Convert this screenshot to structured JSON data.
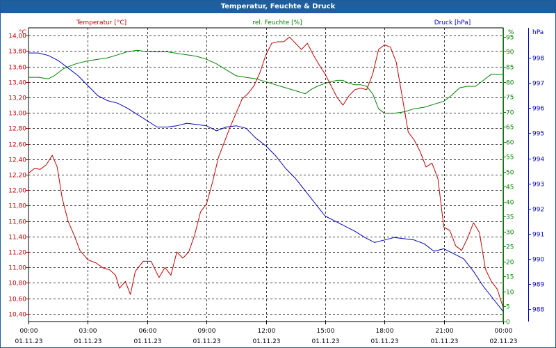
{
  "window": {
    "title": "Temperatur, Feuchte & Druck"
  },
  "colors": {
    "temperature": "#c00000",
    "humidity": "#008000",
    "pressure": "#0000c0"
  },
  "chart_data": {
    "type": "line",
    "title": "Temperatur, Feuchte & Druck",
    "x_unit": "hours since 01.11.23 00:00",
    "xlim": [
      0,
      24
    ],
    "grid": true,
    "x_ticks": [
      {
        "time": "00:00",
        "date": "01.11.23",
        "x": 0
      },
      {
        "time": "03:00",
        "date": "01.11.23",
        "x": 3
      },
      {
        "time": "06:00",
        "date": "01.11.23",
        "x": 6
      },
      {
        "time": "09:00",
        "date": "01.11.23",
        "x": 9
      },
      {
        "time": "12:00",
        "date": "01.11.23",
        "x": 12
      },
      {
        "time": "15:00",
        "date": "01.11.23",
        "x": 15
      },
      {
        "time": "18:00",
        "date": "01.11.23",
        "x": 18
      },
      {
        "time": "21:00",
        "date": "01.11.23",
        "x": 21
      },
      {
        "time": "00:00",
        "date": "02.11.23",
        "x": 24
      }
    ],
    "axes": {
      "temperature": {
        "title": "Temperatur [°C]",
        "unit": "°C",
        "ylim": [
          10.3,
          14.1
        ],
        "ticks": [
          "14,00",
          "13,80",
          "13,60",
          "13,40",
          "13,20",
          "13,00",
          "12,80",
          "12,60",
          "12,40",
          "12,20",
          "12,00",
          "11,80",
          "11,60",
          "11,40",
          "11,20",
          "11,00",
          "10,80",
          "10,60",
          "10,40"
        ],
        "tick_values": [
          14.0,
          13.8,
          13.6,
          13.4,
          13.2,
          13.0,
          12.8,
          12.6,
          12.4,
          12.2,
          12.0,
          11.8,
          11.6,
          11.4,
          11.2,
          11.0,
          10.8,
          10.6,
          10.4
        ]
      },
      "humidity": {
        "title": "rel. Feuchte [%]",
        "unit": "%",
        "ylim": [
          0,
          98
        ],
        "ticks": [
          "95",
          "90",
          "85",
          "80",
          "75",
          "70",
          "65",
          "60",
          "55",
          "50",
          "45",
          "40",
          "35",
          "30",
          "25",
          "20",
          "15",
          "10",
          "5",
          "0"
        ],
        "tick_values": [
          95,
          90,
          85,
          80,
          75,
          70,
          65,
          60,
          55,
          50,
          45,
          40,
          35,
          30,
          25,
          20,
          15,
          10,
          5,
          0
        ]
      },
      "pressure": {
        "title": "Druck [hPa]",
        "unit": "hPa",
        "ylim": [
          987.5,
          999.2
        ],
        "ticks": [
          "998",
          "997",
          "996",
          "995",
          "994",
          "993",
          "992",
          "991",
          "990",
          "989",
          "988"
        ],
        "tick_values": [
          998,
          997,
          996,
          995,
          994,
          993,
          992,
          991,
          990,
          989,
          988
        ]
      }
    },
    "series": [
      {
        "name": "Temperatur [°C]",
        "axis": "temperature",
        "color": "#c00000",
        "points": [
          [
            0,
            12.22
          ],
          [
            0.3,
            12.28
          ],
          [
            0.6,
            12.27
          ],
          [
            0.9,
            12.33
          ],
          [
            1.2,
            12.45
          ],
          [
            1.45,
            12.3
          ],
          [
            1.7,
            11.9
          ],
          [
            2.0,
            11.6
          ],
          [
            2.3,
            11.42
          ],
          [
            2.6,
            11.22
          ],
          [
            3.0,
            11.1
          ],
          [
            3.4,
            11.06
          ],
          [
            3.8,
            10.99
          ],
          [
            4.1,
            10.97
          ],
          [
            4.4,
            10.9
          ],
          [
            4.6,
            10.73
          ],
          [
            4.9,
            10.82
          ],
          [
            5.15,
            10.65
          ],
          [
            5.4,
            10.95
          ],
          [
            5.8,
            11.08
          ],
          [
            6.2,
            11.08
          ],
          [
            6.6,
            10.87
          ],
          [
            6.9,
            11.0
          ],
          [
            7.2,
            10.9
          ],
          [
            7.5,
            11.2
          ],
          [
            7.8,
            11.12
          ],
          [
            8.1,
            11.2
          ],
          [
            8.4,
            11.42
          ],
          [
            8.7,
            11.72
          ],
          [
            9.0,
            11.82
          ],
          [
            9.3,
            12.1
          ],
          [
            9.6,
            12.42
          ],
          [
            9.9,
            12.62
          ],
          [
            10.2,
            12.82
          ],
          [
            10.5,
            13.0
          ],
          [
            10.8,
            13.18
          ],
          [
            11.1,
            13.25
          ],
          [
            11.4,
            13.35
          ],
          [
            11.7,
            13.52
          ],
          [
            12.0,
            13.75
          ],
          [
            12.3,
            13.9
          ],
          [
            12.6,
            13.92
          ],
          [
            12.9,
            13.92
          ],
          [
            13.2,
            13.98
          ],
          [
            13.5,
            13.9
          ],
          [
            13.8,
            13.82
          ],
          [
            14.1,
            13.9
          ],
          [
            14.4,
            13.75
          ],
          [
            14.7,
            13.62
          ],
          [
            15.0,
            13.5
          ],
          [
            15.3,
            13.35
          ],
          [
            15.6,
            13.2
          ],
          [
            15.9,
            13.1
          ],
          [
            16.2,
            13.22
          ],
          [
            16.5,
            13.3
          ],
          [
            16.8,
            13.32
          ],
          [
            17.1,
            13.3
          ],
          [
            17.4,
            13.5
          ],
          [
            17.7,
            13.82
          ],
          [
            18.0,
            13.88
          ],
          [
            18.3,
            13.85
          ],
          [
            18.6,
            13.65
          ],
          [
            18.9,
            13.2
          ],
          [
            19.2,
            12.75
          ],
          [
            19.5,
            12.65
          ],
          [
            19.8,
            12.5
          ],
          [
            20.1,
            12.3
          ],
          [
            20.4,
            12.35
          ],
          [
            20.7,
            12.15
          ],
          [
            21.0,
            11.52
          ],
          [
            21.3,
            11.48
          ],
          [
            21.6,
            11.28
          ],
          [
            21.9,
            11.22
          ],
          [
            22.2,
            11.38
          ],
          [
            22.5,
            11.58
          ],
          [
            22.8,
            11.45
          ],
          [
            23.1,
            10.98
          ],
          [
            23.4,
            10.82
          ],
          [
            23.7,
            10.72
          ],
          [
            24.0,
            10.48
          ]
        ]
      },
      {
        "name": "rel. Feuchte [%]",
        "axis": "humidity",
        "color": "#008000",
        "points": [
          [
            0,
            81.5
          ],
          [
            0.5,
            81.5
          ],
          [
            1.0,
            81.0
          ],
          [
            1.3,
            82.0
          ],
          [
            1.8,
            84.5
          ],
          [
            2.4,
            86.0
          ],
          [
            3.0,
            87.0
          ],
          [
            3.5,
            87.5
          ],
          [
            4.0,
            88.0
          ],
          [
            4.5,
            89.0
          ],
          [
            5.0,
            90.0
          ],
          [
            5.5,
            90.5
          ],
          [
            6.0,
            90.0
          ],
          [
            6.5,
            90.0
          ],
          [
            7.0,
            90.0
          ],
          [
            7.5,
            89.5
          ],
          [
            8.0,
            89.0
          ],
          [
            8.5,
            88.5
          ],
          [
            9.0,
            87.5
          ],
          [
            9.5,
            86.0
          ],
          [
            10.0,
            84.0
          ],
          [
            10.5,
            82.0
          ],
          [
            11.0,
            81.5
          ],
          [
            11.5,
            81.0
          ],
          [
            12.0,
            80.0
          ],
          [
            12.5,
            79.0
          ],
          [
            13.0,
            78.0
          ],
          [
            13.5,
            77.0
          ],
          [
            14.0,
            76.0
          ],
          [
            14.3,
            77.5
          ],
          [
            14.6,
            78.5
          ],
          [
            15.0,
            79.5
          ],
          [
            15.3,
            80.0
          ],
          [
            15.6,
            80.5
          ],
          [
            15.9,
            80.5
          ],
          [
            16.2,
            79.5
          ],
          [
            16.5,
            79.0
          ],
          [
            16.8,
            79.0
          ],
          [
            17.1,
            78.5
          ],
          [
            17.4,
            76.0
          ],
          [
            17.7,
            71.0
          ],
          [
            18.0,
            69.5
          ],
          [
            18.5,
            69.5
          ],
          [
            19.0,
            70.0
          ],
          [
            19.5,
            71.0
          ],
          [
            20.0,
            71.5
          ],
          [
            20.5,
            72.5
          ],
          [
            21.0,
            73.5
          ],
          [
            21.4,
            75.5
          ],
          [
            21.8,
            78.0
          ],
          [
            22.2,
            78.5
          ],
          [
            22.6,
            78.5
          ],
          [
            23.0,
            80.5
          ],
          [
            23.4,
            82.5
          ],
          [
            23.8,
            82.5
          ],
          [
            24.0,
            82.5
          ]
        ]
      },
      {
        "name": "Druck [hPa]",
        "axis": "pressure",
        "color": "#0000c0",
        "points": [
          [
            0,
            998.2
          ],
          [
            0.5,
            998.2
          ],
          [
            1.0,
            998.1
          ],
          [
            1.5,
            997.9
          ],
          [
            2.0,
            997.6
          ],
          [
            2.5,
            997.3
          ],
          [
            3.0,
            996.9
          ],
          [
            3.5,
            996.5
          ],
          [
            4.0,
            996.3
          ],
          [
            4.5,
            996.2
          ],
          [
            5.0,
            996.0
          ],
          [
            5.5,
            995.75
          ],
          [
            6.0,
            995.5
          ],
          [
            6.5,
            995.25
          ],
          [
            7.0,
            995.25
          ],
          [
            7.5,
            995.3
          ],
          [
            8.0,
            995.4
          ],
          [
            8.5,
            995.35
          ],
          [
            9.0,
            995.3
          ],
          [
            9.5,
            995.1
          ],
          [
            10.0,
            995.25
          ],
          [
            10.5,
            995.3
          ],
          [
            11.0,
            995.2
          ],
          [
            11.5,
            994.8
          ],
          [
            12.0,
            994.5
          ],
          [
            12.5,
            994.1
          ],
          [
            13.0,
            993.6
          ],
          [
            13.5,
            993.2
          ],
          [
            14.0,
            992.7
          ],
          [
            14.5,
            992.2
          ],
          [
            15.0,
            991.7
          ],
          [
            15.5,
            991.5
          ],
          [
            16.0,
            991.3
          ],
          [
            16.5,
            991.1
          ],
          [
            17.0,
            990.85
          ],
          [
            17.5,
            990.65
          ],
          [
            18.0,
            990.75
          ],
          [
            18.5,
            990.85
          ],
          [
            19.0,
            990.8
          ],
          [
            19.5,
            990.75
          ],
          [
            20.0,
            990.6
          ],
          [
            20.5,
            990.3
          ],
          [
            21.0,
            990.4
          ],
          [
            21.5,
            990.2
          ],
          [
            22.0,
            990.0
          ],
          [
            22.5,
            989.5
          ],
          [
            23.0,
            988.9
          ],
          [
            23.5,
            988.4
          ],
          [
            24.0,
            987.9
          ]
        ]
      }
    ]
  }
}
